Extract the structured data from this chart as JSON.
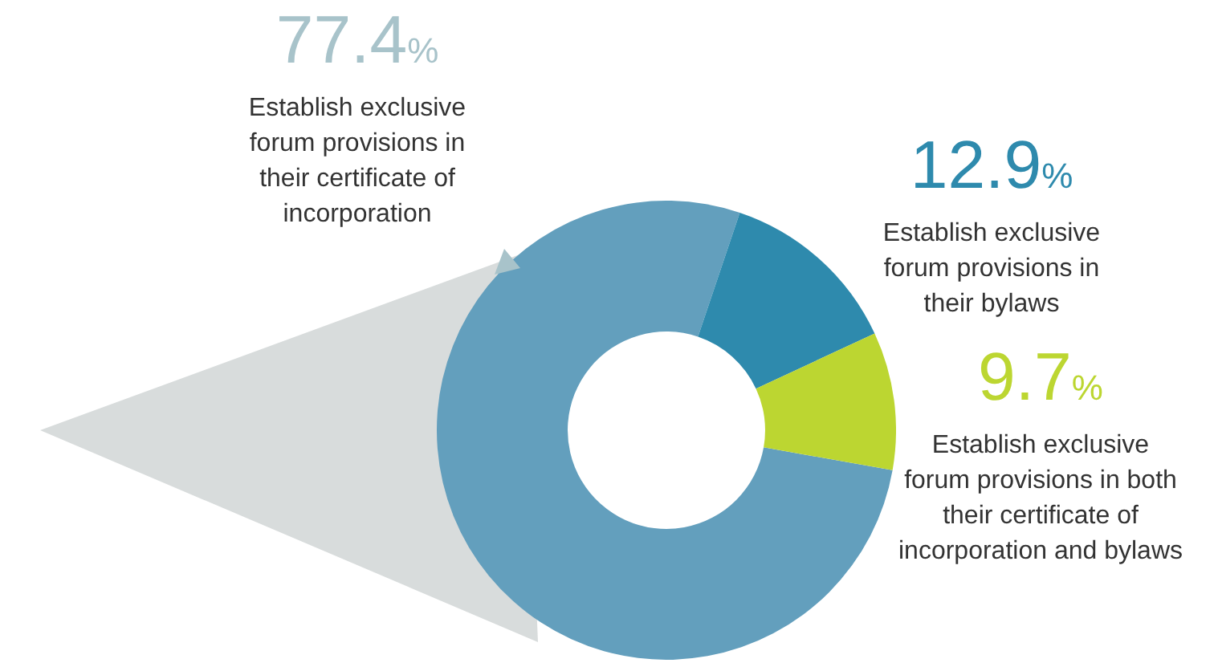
{
  "chart_data": {
    "type": "donut",
    "categories": [
      "Establish exclusive forum provisions in their certificate of incorporation",
      "Establish exclusive forum provisions in their bylaws",
      "Establish exclusive forum provisions in both their certificate of incorporation and bylaws"
    ],
    "values": [
      77.4,
      12.9,
      9.7
    ],
    "colors": [
      "#639fbd",
      "#2e8aad",
      "#bcd631"
    ],
    "value_labels": [
      "77.4%",
      "12.9%",
      "9.7%"
    ],
    "legend": false
  }
}
